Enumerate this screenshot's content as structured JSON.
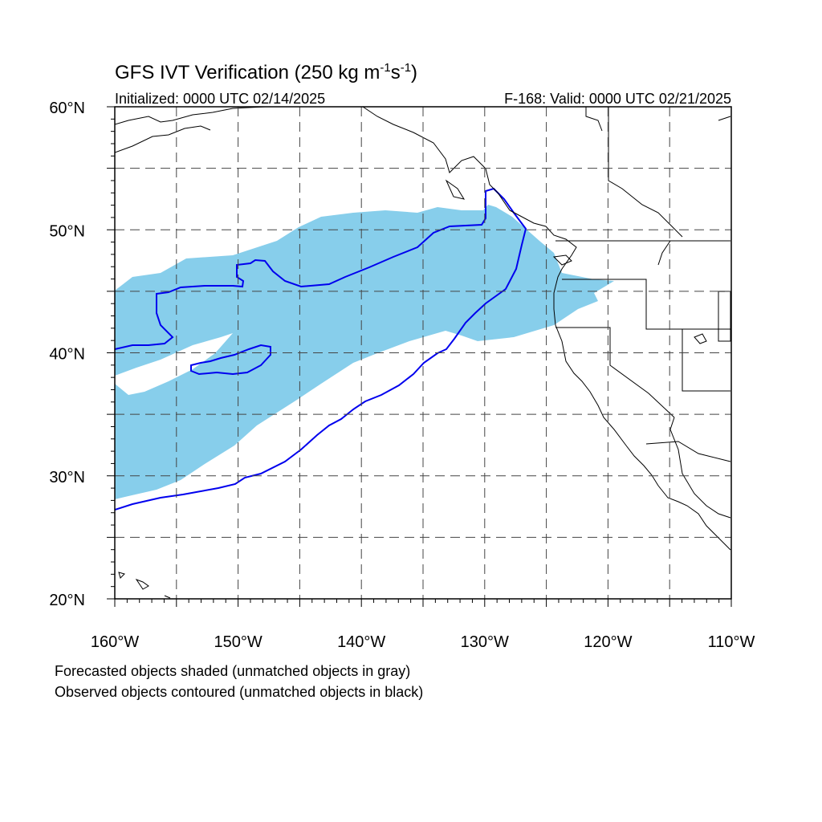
{
  "figure": {
    "title_main": "GFS IVT Verification (250 kg m",
    "title_sup1": "-1",
    "title_mid": "s",
    "title_sup2": "-1",
    "title_end": ")",
    "init_label": "Initialized: 0000 UTC 02/14/2025",
    "valid_label": "F-168: Valid: 0000 UTC 02/21/2025",
    "notes": [
      "Forecasted objects shaded (unmatched objects in gray)",
      "Observed objects contoured (unmatched objects in black)"
    ]
  },
  "map": {
    "projection": "cylindrical equidistant",
    "lon_range": [
      -160,
      -110
    ],
    "lat_range": [
      20,
      60
    ],
    "gridlines": "dashed every 5 degrees",
    "lon_labels": [
      "160°W",
      "150°W",
      "140°W",
      "130°W",
      "120°W",
      "110°W"
    ],
    "lat_labels": [
      "20°N",
      "30°N",
      "40°N",
      "50°N",
      "60°N"
    ]
  },
  "objects": {
    "forecast_fill_color": "#87ceeb",
    "observed_contour_color": "#0000ee",
    "coastline_color": "#000000",
    "forecast_object_name": "forecast-ivt-object",
    "observed_object_name": "observed-ivt-object"
  }
}
